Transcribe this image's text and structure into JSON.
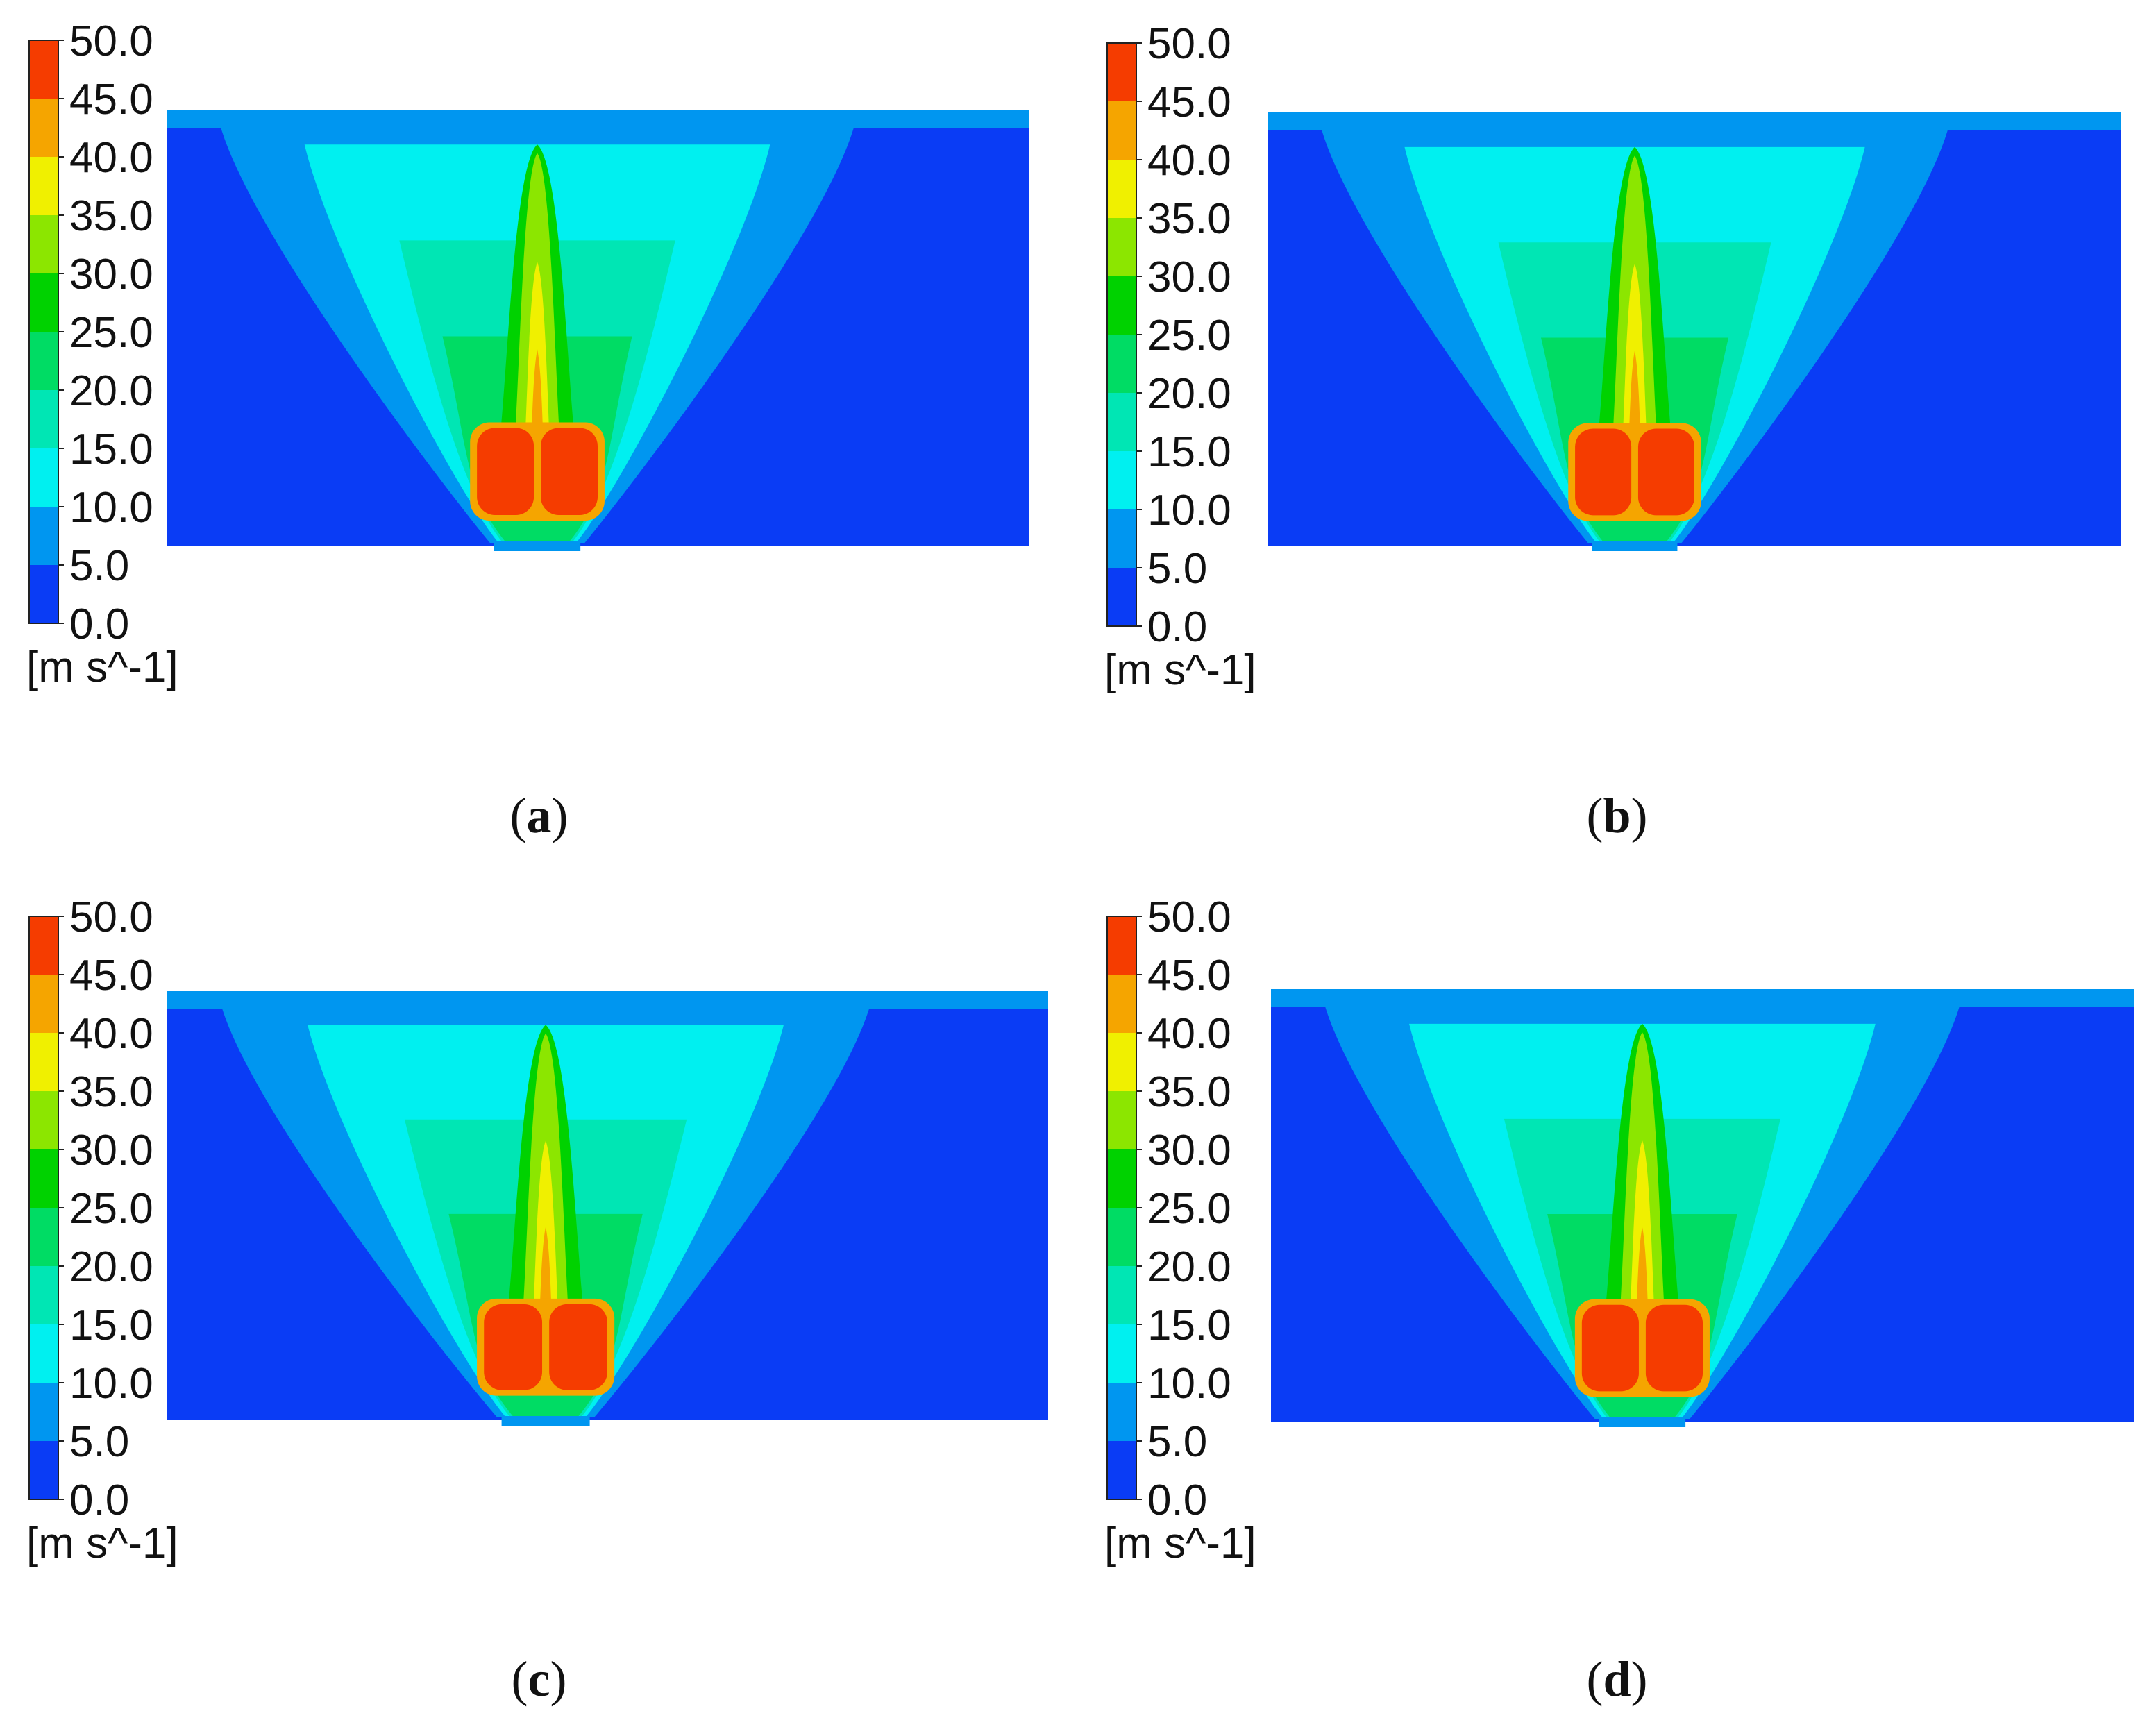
{
  "figure": {
    "panels": [
      {
        "label_open": "(",
        "letter": "a",
        "label_close": ")"
      },
      {
        "label_open": "(",
        "letter": "b",
        "label_close": ")"
      },
      {
        "label_open": "(",
        "letter": "c",
        "label_close": ")"
      },
      {
        "label_open": "(",
        "letter": "d",
        "label_close": ")"
      }
    ]
  },
  "chart_data": [
    {
      "type": "heatmap",
      "panel": "a",
      "colorbar": {
        "unit": "[m s^-1]",
        "ticks": [
          "0.0",
          "5.0",
          "10.0",
          "15.0",
          "20.0",
          "25.0",
          "30.0",
          "35.0",
          "40.0",
          "45.0",
          "50.0"
        ],
        "range": [
          0,
          50
        ],
        "levels": [
          {
            "min": 0,
            "max": 5,
            "color": "#0a3cf5"
          },
          {
            "min": 5,
            "max": 10,
            "color": "#0096f0"
          },
          {
            "min": 10,
            "max": 15,
            "color": "#00f0f0"
          },
          {
            "min": 15,
            "max": 20,
            "color": "#00e6b4"
          },
          {
            "min": 20,
            "max": 25,
            "color": "#00dc64"
          },
          {
            "min": 25,
            "max": 30,
            "color": "#00d200"
          },
          {
            "min": 30,
            "max": 35,
            "color": "#8ce600"
          },
          {
            "min": 35,
            "max": 40,
            "color": "#f0f000"
          },
          {
            "min": 40,
            "max": 45,
            "color": "#f5a500"
          },
          {
            "min": 45,
            "max": 50,
            "color": "#f53c00"
          }
        ]
      },
      "field": {
        "description_levels": "velocity magnitude contour",
        "max_value": 50,
        "jet_core": "red"
      }
    },
    {
      "type": "heatmap",
      "panel": "b",
      "colorbar": {
        "unit": "[m s^-1]",
        "ticks": [
          "0.0",
          "5.0",
          "10.0",
          "15.0",
          "20.0",
          "25.0",
          "30.0",
          "35.0",
          "40.0",
          "45.0",
          "50.0"
        ],
        "range": [
          0,
          50
        ],
        "levels": [
          {
            "min": 0,
            "max": 5,
            "color": "#0a3cf5"
          },
          {
            "min": 5,
            "max": 10,
            "color": "#0096f0"
          },
          {
            "min": 10,
            "max": 15,
            "color": "#00f0f0"
          },
          {
            "min": 15,
            "max": 20,
            "color": "#00e6b4"
          },
          {
            "min": 20,
            "max": 25,
            "color": "#00dc64"
          },
          {
            "min": 25,
            "max": 30,
            "color": "#00d200"
          },
          {
            "min": 30,
            "max": 35,
            "color": "#8ce600"
          },
          {
            "min": 35,
            "max": 40,
            "color": "#f0f000"
          },
          {
            "min": 40,
            "max": 45,
            "color": "#f5a500"
          },
          {
            "min": 45,
            "max": 50,
            "color": "#f53c00"
          }
        ]
      },
      "field": {
        "max_value": 50,
        "jet_core": "red"
      }
    },
    {
      "type": "heatmap",
      "panel": "c",
      "colorbar": {
        "unit": "[m s^-1]",
        "ticks": [
          "0.0",
          "5.0",
          "10.0",
          "15.0",
          "20.0",
          "25.0",
          "30.0",
          "35.0",
          "40.0",
          "45.0",
          "50.0"
        ],
        "range": [
          0,
          50
        ],
        "levels": [
          {
            "min": 0,
            "max": 5,
            "color": "#0a3cf5"
          },
          {
            "min": 5,
            "max": 10,
            "color": "#0096f0"
          },
          {
            "min": 10,
            "max": 15,
            "color": "#00f0f0"
          },
          {
            "min": 15,
            "max": 20,
            "color": "#00e6b4"
          },
          {
            "min": 20,
            "max": 25,
            "color": "#00dc64"
          },
          {
            "min": 25,
            "max": 30,
            "color": "#00d200"
          },
          {
            "min": 30,
            "max": 35,
            "color": "#8ce600"
          },
          {
            "min": 35,
            "max": 40,
            "color": "#f0f000"
          },
          {
            "min": 40,
            "max": 45,
            "color": "#f5a500"
          },
          {
            "min": 45,
            "max": 50,
            "color": "#f53c00"
          }
        ]
      },
      "field": {
        "max_value": 50,
        "jet_core": "red"
      }
    },
    {
      "type": "heatmap",
      "panel": "d",
      "colorbar": {
        "unit": "[m s^-1]",
        "ticks": [
          "0.0",
          "5.0",
          "10.0",
          "15.0",
          "20.0",
          "25.0",
          "30.0",
          "35.0",
          "40.0",
          "45.0",
          "50.0"
        ],
        "range": [
          0,
          50
        ],
        "levels": [
          {
            "min": 0,
            "max": 5,
            "color": "#0a3cf5"
          },
          {
            "min": 5,
            "max": 10,
            "color": "#0096f0"
          },
          {
            "min": 10,
            "max": 15,
            "color": "#00f0f0"
          },
          {
            "min": 15,
            "max": 20,
            "color": "#00e6b4"
          },
          {
            "min": 20,
            "max": 25,
            "color": "#00dc64"
          },
          {
            "min": 25,
            "max": 30,
            "color": "#00d200"
          },
          {
            "min": 30,
            "max": 35,
            "color": "#8ce600"
          },
          {
            "min": 35,
            "max": 40,
            "color": "#f0f000"
          },
          {
            "min": 40,
            "max": 45,
            "color": "#f5a500"
          },
          {
            "min": 45,
            "max": 50,
            "color": "#f53c00"
          }
        ]
      },
      "field": {
        "max_value": 50,
        "jet_core": "red"
      }
    }
  ]
}
